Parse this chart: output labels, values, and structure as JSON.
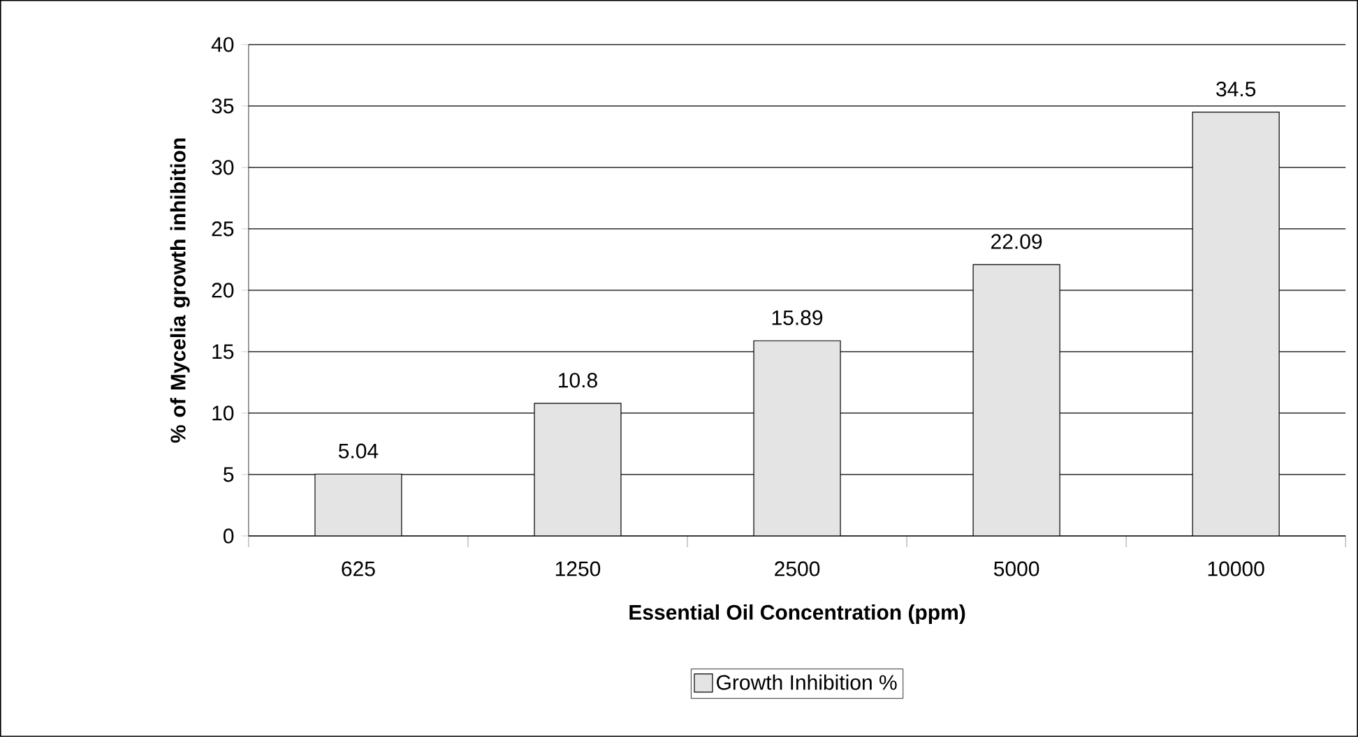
{
  "chart_data": {
    "type": "bar",
    "xlabel": "Essential Oil Concentration (ppm)",
    "ylabel": "% of Mycelia growth inhibition",
    "categories": [
      "625",
      "1250",
      "2500",
      "5000",
      "10000"
    ],
    "series": [
      {
        "name": "Growth Inhibition %",
        "color": "#e4e4e4",
        "values": [
          5.04,
          10.8,
          15.89,
          22.09,
          34.5
        ]
      }
    ],
    "ylim": [
      0,
      40
    ],
    "yticks": [
      0,
      5,
      10,
      15,
      20,
      25,
      30,
      35,
      40
    ],
    "grid": "y",
    "legend": "bottom",
    "data_labels": true
  }
}
